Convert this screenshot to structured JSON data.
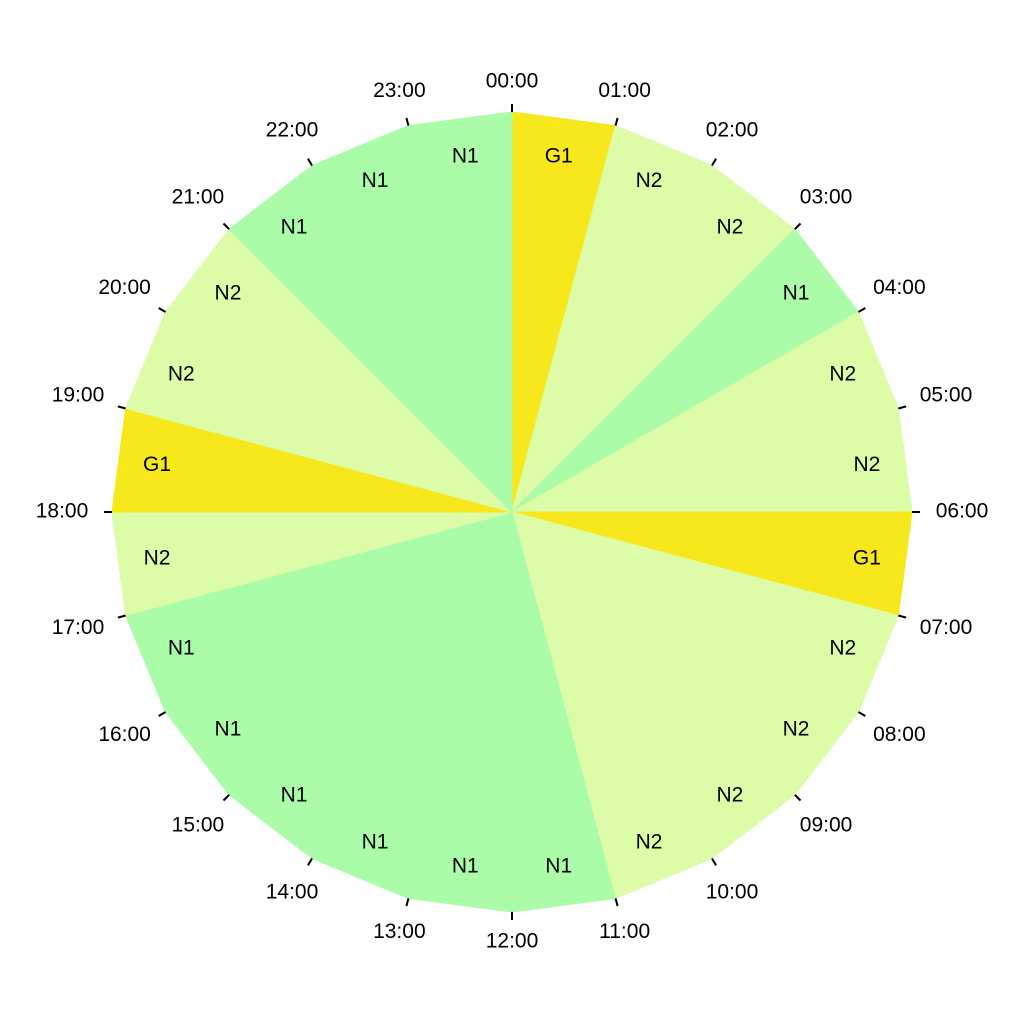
{
  "hours": [
    "00:00",
    "01:00",
    "02:00",
    "03:00",
    "04:00",
    "05:00",
    "06:00",
    "07:00",
    "08:00",
    "09:00",
    "10:00",
    "11:00",
    "12:00",
    "13:00",
    "14:00",
    "15:00",
    "16:00",
    "17:00",
    "18:00",
    "19:00",
    "20:00",
    "21:00",
    "22:00",
    "23:00"
  ],
  "segments": [
    {
      "label": "G1"
    },
    {
      "label": "N2"
    },
    {
      "label": "N2"
    },
    {
      "label": "N1"
    },
    {
      "label": "N2"
    },
    {
      "label": "N2"
    },
    {
      "label": "G1"
    },
    {
      "label": "N2"
    },
    {
      "label": "N2"
    },
    {
      "label": "N2"
    },
    {
      "label": "N2"
    },
    {
      "label": "N1"
    },
    {
      "label": "N1"
    },
    {
      "label": "N1"
    },
    {
      "label": "N1"
    },
    {
      "label": "N1"
    },
    {
      "label": "N1"
    },
    {
      "label": "N2"
    },
    {
      "label": "G1"
    },
    {
      "label": "N2"
    },
    {
      "label": "N2"
    },
    {
      "label": "N1"
    },
    {
      "label": "N1"
    },
    {
      "label": "N1"
    }
  ],
  "colors": {
    "G1": "#f7e81c",
    "N1": "#aafca8",
    "N2": "#dcfca8"
  }
}
